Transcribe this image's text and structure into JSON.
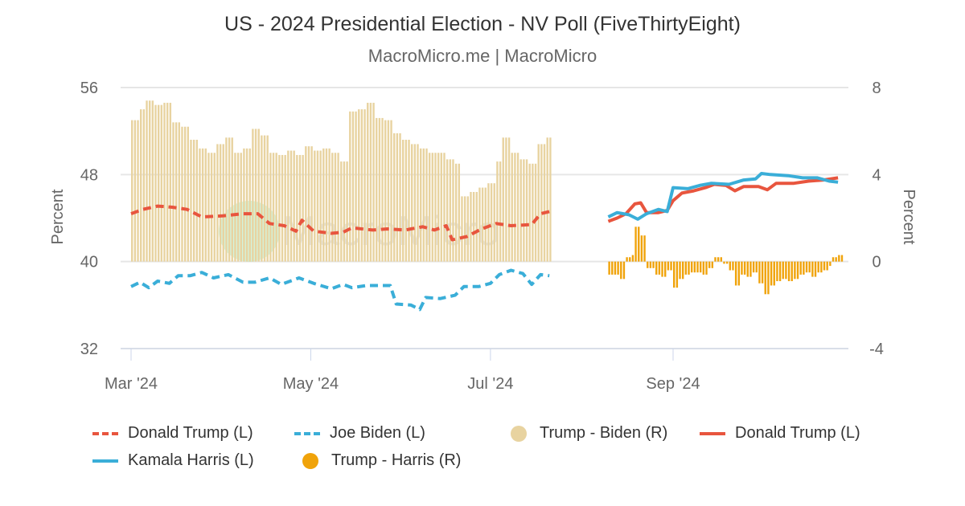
{
  "chart_data": {
    "type": "line",
    "title": "US - 2024 Presidential Election - NV Poll (FiveThirtyEight)",
    "subtitle": "MacroMicro.me | MacroMicro",
    "watermark": "MacroMicro",
    "ylabel_left": "Percent",
    "ylabel_right": "Percent",
    "ylim_left": [
      32,
      56
    ],
    "ylim_right": [
      -4,
      8
    ],
    "yticks_left": [
      "56",
      "48",
      "40",
      "32"
    ],
    "yticks_right": [
      "8",
      "4",
      "0",
      "-4"
    ],
    "xticks": [
      {
        "date": "2024-03-01",
        "label": "Mar '24"
      },
      {
        "date": "2024-05-01",
        "label": "May '24"
      },
      {
        "date": "2024-07-01",
        "label": "Jul '24"
      },
      {
        "date": "2024-09-01",
        "label": "Sep '24"
      }
    ],
    "grid": true,
    "legend_position": "bottom",
    "series": [
      {
        "name": "Donald Trump (L)",
        "axis": "left",
        "style": "dashed",
        "color": "#e8553e",
        "points": [
          [
            "2024-03-01",
            44.4
          ],
          [
            "2024-03-05",
            44.8
          ],
          [
            "2024-03-10",
            45.1
          ],
          [
            "2024-03-15",
            45.0
          ],
          [
            "2024-03-20",
            44.8
          ],
          [
            "2024-03-25",
            44.1
          ],
          [
            "2024-04-01",
            44.2
          ],
          [
            "2024-04-08",
            44.4
          ],
          [
            "2024-04-13",
            44.4
          ],
          [
            "2024-04-17",
            43.5
          ],
          [
            "2024-04-22",
            43.3
          ],
          [
            "2024-04-26",
            42.8
          ],
          [
            "2024-04-28",
            43.8
          ],
          [
            "2024-05-02",
            42.8
          ],
          [
            "2024-05-08",
            42.6
          ],
          [
            "2024-05-12",
            42.7
          ],
          [
            "2024-05-15",
            43.1
          ],
          [
            "2024-05-22",
            42.9
          ],
          [
            "2024-05-27",
            43.0
          ],
          [
            "2024-06-02",
            42.9
          ],
          [
            "2024-06-08",
            43.2
          ],
          [
            "2024-06-12",
            42.9
          ],
          [
            "2024-06-16",
            43.3
          ],
          [
            "2024-06-18",
            42.0
          ],
          [
            "2024-06-23",
            42.3
          ],
          [
            "2024-06-28",
            43.0
          ],
          [
            "2024-07-03",
            43.5
          ],
          [
            "2024-07-08",
            43.3
          ],
          [
            "2024-07-15",
            43.4
          ],
          [
            "2024-07-18",
            44.4
          ],
          [
            "2024-07-21",
            44.6
          ]
        ]
      },
      {
        "name": "Joe Biden (L)",
        "axis": "left",
        "style": "dashed",
        "color": "#3aaed8",
        "points": [
          [
            "2024-03-01",
            37.7
          ],
          [
            "2024-03-04",
            38.1
          ],
          [
            "2024-03-07",
            37.6
          ],
          [
            "2024-03-10",
            38.2
          ],
          [
            "2024-03-14",
            38.0
          ],
          [
            "2024-03-17",
            38.7
          ],
          [
            "2024-03-21",
            38.7
          ],
          [
            "2024-03-25",
            39.0
          ],
          [
            "2024-03-29",
            38.5
          ],
          [
            "2024-04-03",
            38.8
          ],
          [
            "2024-04-08",
            38.1
          ],
          [
            "2024-04-12",
            38.1
          ],
          [
            "2024-04-17",
            38.5
          ],
          [
            "2024-04-21",
            37.9
          ],
          [
            "2024-04-27",
            38.5
          ],
          [
            "2024-05-02",
            38.0
          ],
          [
            "2024-05-08",
            37.5
          ],
          [
            "2024-05-12",
            37.9
          ],
          [
            "2024-05-15",
            37.6
          ],
          [
            "2024-05-20",
            37.8
          ],
          [
            "2024-05-25",
            37.8
          ],
          [
            "2024-05-28",
            37.8
          ],
          [
            "2024-05-30",
            36.1
          ],
          [
            "2024-06-04",
            36.0
          ],
          [
            "2024-06-07",
            35.6
          ],
          [
            "2024-06-09",
            36.7
          ],
          [
            "2024-06-14",
            36.6
          ],
          [
            "2024-06-19",
            36.9
          ],
          [
            "2024-06-22",
            37.7
          ],
          [
            "2024-06-27",
            37.7
          ],
          [
            "2024-07-01",
            38.0
          ],
          [
            "2024-07-04",
            38.8
          ],
          [
            "2024-07-08",
            39.2
          ],
          [
            "2024-07-12",
            38.9
          ],
          [
            "2024-07-15",
            37.9
          ],
          [
            "2024-07-18",
            38.8
          ],
          [
            "2024-07-21",
            38.7
          ]
        ]
      },
      {
        "name": "Trump - Biden (R)",
        "axis": "right",
        "style": "bar",
        "color": "#e8d3a0",
        "points": [
          [
            "2024-03-01",
            6.5
          ],
          [
            "2024-03-04",
            7.0
          ],
          [
            "2024-03-06",
            7.4
          ],
          [
            "2024-03-09",
            7.2
          ],
          [
            "2024-03-12",
            7.3
          ],
          [
            "2024-03-15",
            6.4
          ],
          [
            "2024-03-18",
            6.2
          ],
          [
            "2024-03-21",
            5.6
          ],
          [
            "2024-03-24",
            5.2
          ],
          [
            "2024-03-27",
            5.0
          ],
          [
            "2024-03-30",
            5.4
          ],
          [
            "2024-04-02",
            5.7
          ],
          [
            "2024-04-05",
            5.0
          ],
          [
            "2024-04-08",
            5.2
          ],
          [
            "2024-04-11",
            6.1
          ],
          [
            "2024-04-14",
            5.8
          ],
          [
            "2024-04-17",
            5.0
          ],
          [
            "2024-04-20",
            4.9
          ],
          [
            "2024-04-23",
            5.1
          ],
          [
            "2024-04-26",
            4.9
          ],
          [
            "2024-04-29",
            5.3
          ],
          [
            "2024-05-02",
            5.1
          ],
          [
            "2024-05-05",
            5.2
          ],
          [
            "2024-05-08",
            5.0
          ],
          [
            "2024-05-11",
            4.6
          ],
          [
            "2024-05-14",
            6.9
          ],
          [
            "2024-05-17",
            7.0
          ],
          [
            "2024-05-20",
            7.3
          ],
          [
            "2024-05-23",
            6.6
          ],
          [
            "2024-05-26",
            6.5
          ],
          [
            "2024-05-29",
            5.9
          ],
          [
            "2024-06-01",
            5.6
          ],
          [
            "2024-06-04",
            5.4
          ],
          [
            "2024-06-07",
            5.2
          ],
          [
            "2024-06-10",
            5.0
          ],
          [
            "2024-06-13",
            5.0
          ],
          [
            "2024-06-16",
            4.7
          ],
          [
            "2024-06-19",
            4.5
          ],
          [
            "2024-06-21",
            3.0
          ],
          [
            "2024-06-24",
            3.2
          ],
          [
            "2024-06-27",
            3.4
          ],
          [
            "2024-06-30",
            3.6
          ],
          [
            "2024-07-03",
            4.6
          ],
          [
            "2024-07-05",
            5.7
          ],
          [
            "2024-07-08",
            5.0
          ],
          [
            "2024-07-11",
            4.7
          ],
          [
            "2024-07-14",
            4.5
          ],
          [
            "2024-07-17",
            5.4
          ],
          [
            "2024-07-20",
            5.7
          ]
        ]
      },
      {
        "name": "Donald Trump (L)",
        "axis": "left",
        "style": "solid",
        "color": "#e8553e",
        "points": [
          [
            "2024-08-10",
            43.7
          ],
          [
            "2024-08-13",
            44.0
          ],
          [
            "2024-08-16",
            44.4
          ],
          [
            "2024-08-19",
            45.3
          ],
          [
            "2024-08-21",
            45.4
          ],
          [
            "2024-08-23",
            44.5
          ],
          [
            "2024-08-27",
            44.5
          ],
          [
            "2024-08-30",
            44.7
          ],
          [
            "2024-09-01",
            45.6
          ],
          [
            "2024-09-04",
            46.3
          ],
          [
            "2024-09-08",
            46.5
          ],
          [
            "2024-09-12",
            46.8
          ],
          [
            "2024-09-15",
            47.1
          ],
          [
            "2024-09-19",
            47.0
          ],
          [
            "2024-09-22",
            46.5
          ],
          [
            "2024-09-25",
            46.9
          ],
          [
            "2024-09-30",
            46.9
          ],
          [
            "2024-10-03",
            46.6
          ],
          [
            "2024-10-06",
            47.2
          ],
          [
            "2024-10-12",
            47.2
          ],
          [
            "2024-10-17",
            47.4
          ],
          [
            "2024-10-22",
            47.5
          ],
          [
            "2024-10-27",
            47.7
          ]
        ]
      },
      {
        "name": "Kamala Harris (L)",
        "axis": "left",
        "style": "solid",
        "color": "#3aaed8",
        "points": [
          [
            "2024-08-10",
            44.1
          ],
          [
            "2024-08-13",
            44.5
          ],
          [
            "2024-08-17",
            44.3
          ],
          [
            "2024-08-20",
            43.9
          ],
          [
            "2024-08-23",
            44.4
          ],
          [
            "2024-08-27",
            44.8
          ],
          [
            "2024-08-30",
            44.6
          ],
          [
            "2024-09-01",
            46.8
          ],
          [
            "2024-09-06",
            46.7
          ],
          [
            "2024-09-10",
            47.0
          ],
          [
            "2024-09-14",
            47.2
          ],
          [
            "2024-09-20",
            47.1
          ],
          [
            "2024-09-25",
            47.5
          ],
          [
            "2024-09-29",
            47.6
          ],
          [
            "2024-10-01",
            48.1
          ],
          [
            "2024-10-04",
            48.0
          ],
          [
            "2024-10-10",
            47.9
          ],
          [
            "2024-10-15",
            47.7
          ],
          [
            "2024-10-20",
            47.7
          ],
          [
            "2024-10-24",
            47.4
          ],
          [
            "2024-10-27",
            47.3
          ]
        ]
      },
      {
        "name": "Trump - Harris (R)",
        "axis": "right",
        "style": "bar",
        "color": "#f0a30a",
        "points": [
          [
            "2024-08-10",
            -0.6
          ],
          [
            "2024-08-12",
            -0.6
          ],
          [
            "2024-08-14",
            -0.8
          ],
          [
            "2024-08-16",
            0.2
          ],
          [
            "2024-08-18",
            0.3
          ],
          [
            "2024-08-19",
            1.6
          ],
          [
            "2024-08-21",
            1.2
          ],
          [
            "2024-08-23",
            -0.3
          ],
          [
            "2024-08-26",
            -0.6
          ],
          [
            "2024-08-28",
            -0.7
          ],
          [
            "2024-08-30",
            -0.4
          ],
          [
            "2024-09-01",
            -1.2
          ],
          [
            "2024-09-03",
            -0.8
          ],
          [
            "2024-09-05",
            -0.6
          ],
          [
            "2024-09-07",
            -0.5
          ],
          [
            "2024-09-09",
            -0.5
          ],
          [
            "2024-09-11",
            -0.6
          ],
          [
            "2024-09-13",
            -0.3
          ],
          [
            "2024-09-15",
            0.2
          ],
          [
            "2024-09-18",
            -0.1
          ],
          [
            "2024-09-20",
            -0.4
          ],
          [
            "2024-09-22",
            -1.1
          ],
          [
            "2024-09-24",
            -0.6
          ],
          [
            "2024-09-26",
            -0.7
          ],
          [
            "2024-09-28",
            -0.5
          ],
          [
            "2024-09-30",
            -1.0
          ],
          [
            "2024-10-02",
            -1.5
          ],
          [
            "2024-10-04",
            -1.1
          ],
          [
            "2024-10-06",
            -0.9
          ],
          [
            "2024-10-08",
            -0.8
          ],
          [
            "2024-10-10",
            -0.9
          ],
          [
            "2024-10-12",
            -0.8
          ],
          [
            "2024-10-14",
            -0.6
          ],
          [
            "2024-10-16",
            -0.5
          ],
          [
            "2024-10-18",
            -0.7
          ],
          [
            "2024-10-20",
            -0.5
          ],
          [
            "2024-10-22",
            -0.4
          ],
          [
            "2024-10-24",
            -0.2
          ],
          [
            "2024-10-25",
            0.2
          ],
          [
            "2024-10-27",
            0.3
          ]
        ]
      }
    ]
  }
}
